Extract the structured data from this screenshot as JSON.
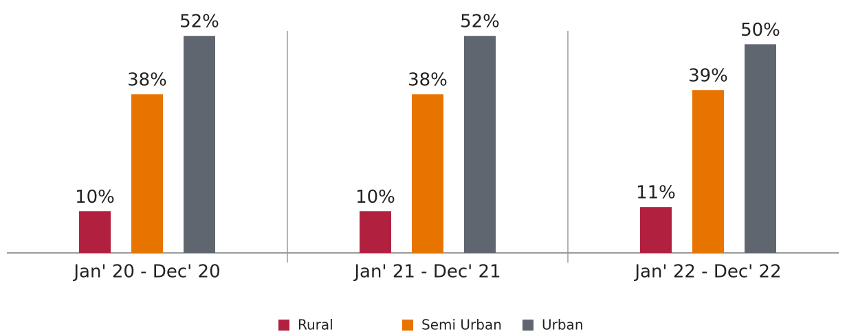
{
  "chart_data": {
    "type": "bar",
    "categories": [
      "Jan' 20 - Dec' 20",
      "Jan' 21 - Dec' 21",
      "Jan' 22 - Dec' 22"
    ],
    "series": [
      {
        "name": "Rural",
        "color": "#b22040",
        "values": [
          10,
          10,
          11
        ],
        "value_labels": [
          "10%",
          "10%",
          "11%"
        ]
      },
      {
        "name": "Semi Urban",
        "color": "#e87400",
        "values": [
          38,
          38,
          39
        ],
        "value_labels": [
          "38%",
          "38%",
          "39%"
        ]
      },
      {
        "name": "Urban",
        "color": "#5f6670",
        "values": [
          52,
          52,
          50
        ],
        "value_labels": [
          "52%",
          "52%",
          "50%"
        ]
      }
    ],
    "ylim": [
      0,
      55
    ]
  }
}
